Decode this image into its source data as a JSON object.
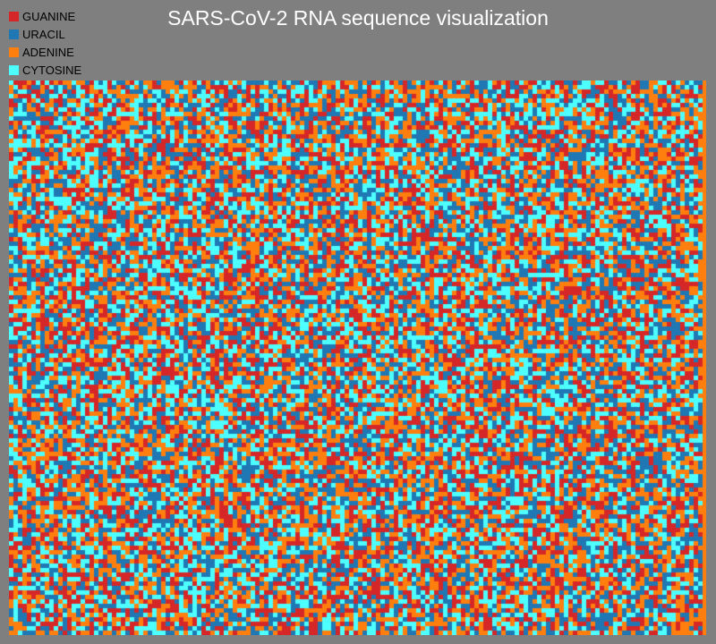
{
  "chart_data": {
    "type": "heatmap",
    "title": "SARS-CoV-2 RNA sequence visualization",
    "legend": {
      "placement": "top-left",
      "entries": [
        {
          "label": "GUANINE",
          "color": "#d62728"
        },
        {
          "label": "URACIL",
          "color": "#1f77b4"
        },
        {
          "label": "ADENINE",
          "color": "#ff7f0e"
        },
        {
          "label": "CYTOSINE",
          "color": "#4dffff"
        }
      ]
    },
    "categories": [
      "GUANINE",
      "URACIL",
      "ADENINE",
      "CYTOSINE"
    ],
    "background_color": "#7f7f7f",
    "grid": false,
    "sample_rows": [
      "ABCGBUGACCGCUGBAABCGAGUCCAABBCGCCABAGACGACCCUBBUAGCCBGUBGACACABABGUCGUACCCCAGGUUBBAABCABUAAGUUGCGCUBUABBAGUGGUUGABCAAUBUCAUGCBBBAAAGCABBGUAACGGAUUBBGCGGUUAAAGGUGBUAGUBUBAG"
    ]
  }
}
